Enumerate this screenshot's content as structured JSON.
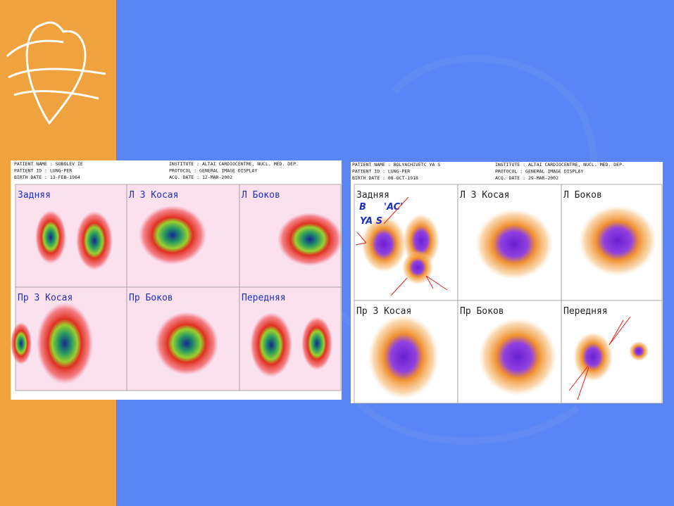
{
  "scans": [
    {
      "header": {
        "left": [
          "PATIENT NAME : SOBOLEV IE",
          "PATIENT ID   : LUNG-PER",
          "BIRTH DATE   : 13-FEB-1964"
        ],
        "right": [
          "INSTITUTE : ALTAI  CARDIOCENTRE, NUCL. MED. DEP.",
          "PROTOCOL  : GENERAL IMAGE DISPLAY",
          "ACQ. DATE : 12-MAR-2002"
        ]
      },
      "views": [
        "Задняя",
        "Л 3 Косая",
        "Л Боков",
        "Пр 3 Косая",
        "Пр Боков",
        "Передняя"
      ]
    },
    {
      "header": {
        "left": [
          "PATIENT NAME : BOLYACHIVETC YA S",
          "PATIENT ID   : LUNG-PER",
          "BIRTH DATE   : 08-OCT-1918"
        ],
        "right": [
          "INSTITUTE : ALTAI  CARDIOCENTRE, NUCL. MED. DEP.",
          "PROTOCOL  : GENERAL IMAGE DISPLAY",
          "ACQ. DATE : 29-MAR-2002"
        ]
      },
      "views": [
        "Задняя",
        "Л 3 Косая",
        "Л Боков",
        "Пр 3 Косая",
        "Пр Боков",
        "Передняя"
      ]
    }
  ],
  "annotations": [
    "B",
    "'AC'",
    "YA S"
  ]
}
